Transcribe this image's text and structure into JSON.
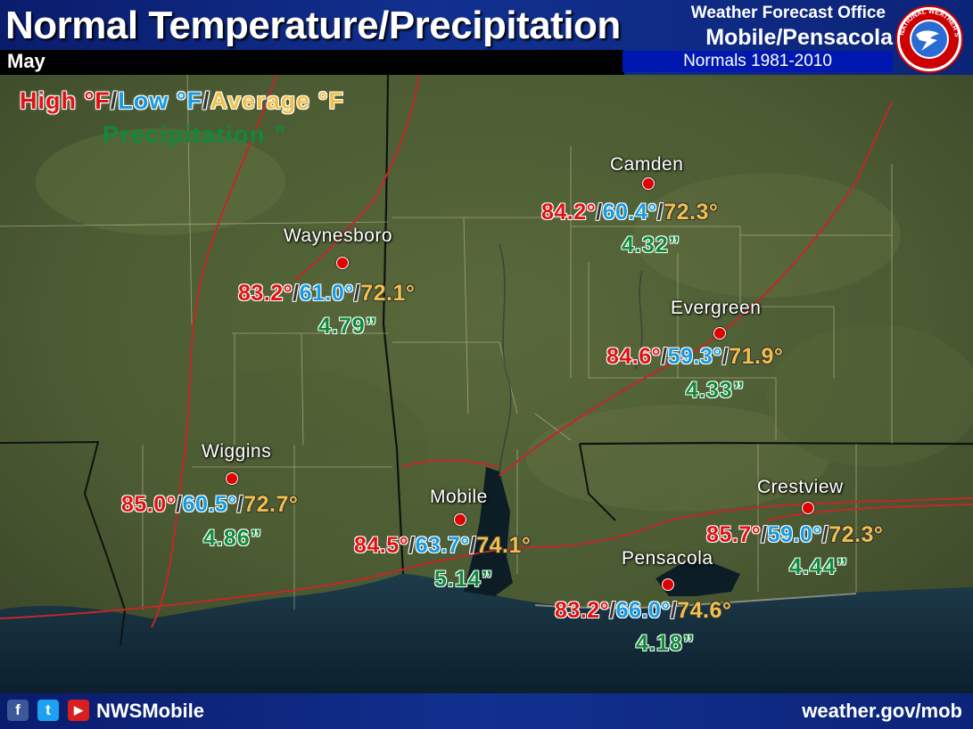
{
  "header": {
    "title": "Normal Temperature/Precipitation",
    "month": "May",
    "office_line1": "Weather Forecast Office",
    "office_line2": "Mobile/Pensacola",
    "normals_period": "Normals 1981-2010",
    "logo_icon": "nws-logo-icon",
    "logo_text": "NATIONAL WEATHER SERVICE"
  },
  "legend": {
    "high_label": "High °F",
    "low_label": "Low °F",
    "avg_label": "Average °F",
    "precip_label": "Precipitation ”",
    "sep": "/"
  },
  "colors": {
    "high": "#e11212",
    "low": "#1a9ae0",
    "average": "#f0c04a",
    "precipitation": "#0f8a3a",
    "station_dot": "#e00000",
    "banner": "#11308f"
  },
  "stations": [
    {
      "name": "Camden",
      "high": "84.2°",
      "low": "60.4°",
      "avg": "72.3°",
      "precip": "4.32”"
    },
    {
      "name": "Waynesboro",
      "high": "83.2°",
      "low": "61.0°",
      "avg": "72.1°",
      "precip": "4.79”"
    },
    {
      "name": "Evergreen",
      "high": "84.6°",
      "low": "59.3°",
      "avg": "71.9°",
      "precip": "4.33”"
    },
    {
      "name": "Wiggins",
      "high": "85.0°",
      "low": "60.5°",
      "avg": "72.7°",
      "precip": "4.86”"
    },
    {
      "name": "Mobile",
      "high": "84.5°",
      "low": "63.7°",
      "avg": "74.1°",
      "precip": "5.14”"
    },
    {
      "name": "Crestview",
      "high": "85.7°",
      "low": "59.0°",
      "avg": "72.3°",
      "precip": "4.44”"
    },
    {
      "name": "Pensacola",
      "high": "83.2°",
      "low": "66.0°",
      "avg": "74.6°",
      "precip": "4.18”"
    }
  ],
  "footer": {
    "handle": "NWSMobile",
    "website": "weather.gov/mob",
    "icons": [
      "facebook-icon",
      "twitter-icon",
      "youtube-icon"
    ],
    "facebook_glyph": "f",
    "twitter_glyph": "t",
    "youtube_glyph": "▶"
  }
}
